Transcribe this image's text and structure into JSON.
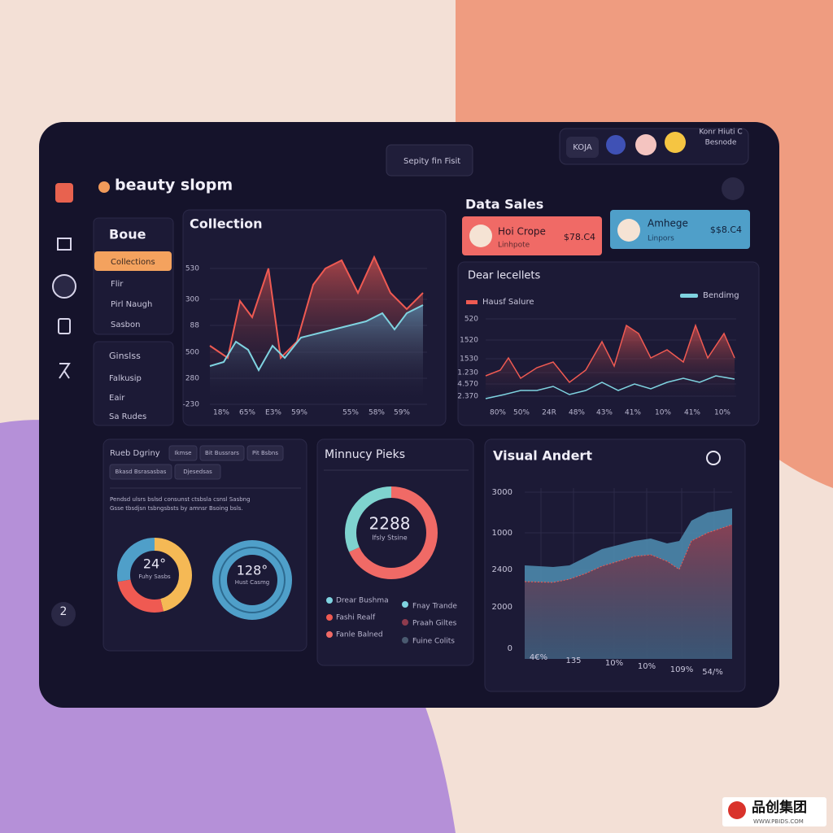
{
  "brand": "beauty slopm",
  "search": "Sepity fin Fisit",
  "header": {
    "badge": "KOJA",
    "user_name": "Konr Hiuti C",
    "user_role": "Besnode"
  },
  "sidebar": {
    "badge": "2"
  },
  "menu_one": {
    "title": "Boue",
    "items": [
      "Collections",
      "Flir",
      "Pirl Naugh",
      "Sasbon"
    ]
  },
  "menu_two": {
    "title": "Ginslss",
    "items": [
      "Falkusip",
      "Eair",
      "Sa Rudes"
    ]
  },
  "collection": {
    "title": "Collection",
    "y_labels": [
      "530",
      "300",
      "88",
      "500",
      "280",
      "-230"
    ],
    "x_labels": [
      "18%",
      "65%",
      "E3%",
      "59%",
      "55%",
      "58%",
      "59%"
    ]
  },
  "data_sales": {
    "title": "Data Sales",
    "cards": [
      {
        "name": "Hoi Crope",
        "sub": "Linhpote",
        "amount": "$78.C4"
      },
      {
        "name": "Amhege",
        "sub": "Linpors",
        "amount": "$$8.C4"
      }
    ]
  },
  "dear_lecellets": {
    "title": "Dear lecellets",
    "legend": [
      "Hausf Salure",
      "Bendimg"
    ],
    "y_labels": [
      "520",
      "1520",
      "1530",
      "1.230",
      "4.570",
      "2.370"
    ],
    "x_labels": [
      "80%",
      "50%",
      "24R",
      "48%",
      "43%",
      "41%",
      "10%",
      "41%",
      "10%"
    ]
  },
  "rueb": {
    "title": "Rueb Dgriny",
    "chips": [
      "Ikmse",
      "Bit Bussrars",
      "Pit Bsbns",
      "Bkasd Bsrasasbas",
      "Djesedsas"
    ],
    "text": [
      "Pendsd ulsrs bslsd consunst ctsbsla csnsl Sasbng",
      "Gsse tbsdjsn tsbngsbsts by amnsr Bsoing bsls."
    ],
    "donuts": [
      {
        "center": "24°",
        "caption": "Fuhy Sasbs"
      },
      {
        "center": "128°",
        "caption": "Hust Casmg"
      }
    ]
  },
  "minnucy": {
    "title": "Minnucy Pieks",
    "center": "2288",
    "caption": "Ifsly Stsine",
    "legend": [
      "Drear Bushma",
      "Fashi Realf",
      "Fanle Balned",
      "Fnay Trande",
      "Praah Giltes",
      "Fuine Colits"
    ]
  },
  "visual_andert": {
    "title": "Visual Andert",
    "y_labels": [
      "3000",
      "1000",
      "2400",
      "2000",
      "0"
    ],
    "x_labels": [
      "4€%",
      "135",
      "10%",
      "10%",
      "109%",
      "54/%"
    ]
  },
  "watermark": {
    "logo": "品创集团",
    "url": "WWW.PBIDS.COM"
  }
}
